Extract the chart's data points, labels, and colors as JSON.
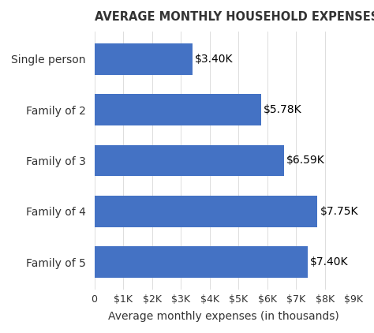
{
  "title": "AVERAGE MONTHLY HOUSEHOLD EXPENSES BY FAMILY SIZE",
  "categories": [
    "Single person",
    "Family of 2",
    "Family of 3",
    "Family of 4",
    "Family of 5"
  ],
  "values": [
    3400,
    5780,
    6590,
    7750,
    7400
  ],
  "labels": [
    "$3.40K",
    "$5.78K",
    "$6.59K",
    "$7.75K",
    "$7.40K"
  ],
  "bar_color": "#4472C4",
  "background_color": "#ffffff",
  "xlabel": "Average monthly expenses (in thousands)",
  "xlim": [
    0,
    9000
  ],
  "xticks": [
    0,
    1000,
    2000,
    3000,
    4000,
    5000,
    6000,
    7000,
    8000,
    9000
  ],
  "xtick_labels": [
    "0",
    "$1K",
    "$2K",
    "$3K",
    "$4K",
    "$5K",
    "$6K",
    "$7K",
    "$8K",
    "$9K"
  ],
  "title_fontsize": 10.5,
  "label_fontsize": 10,
  "tick_fontsize": 9,
  "xlabel_fontsize": 10
}
